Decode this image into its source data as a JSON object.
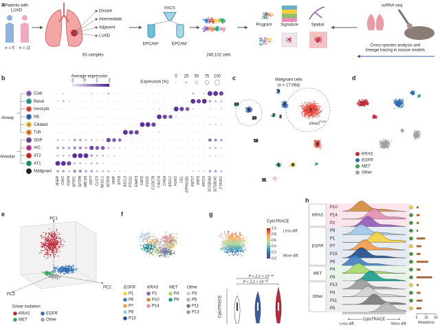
{
  "panel_labels": [
    "a",
    "b",
    "c",
    "d",
    "e",
    "f",
    "g",
    "h"
  ],
  "a": {
    "patients": [
      "Patients with",
      "LUAD"
    ],
    "n": [
      "n = 5",
      "n = 11"
    ],
    "regions": [
      "Distant",
      "Intermediate",
      "Adjacent",
      "LUAD"
    ],
    "samples": "63 samples",
    "facs": "FACS",
    "epcam": [
      "EPCAM⁺",
      "EPCAM⁻"
    ],
    "cells": "246,102 cells",
    "outputs": [
      "Program",
      "Signature",
      "Spatial"
    ],
    "scrna": "scRNA-seq",
    "mouse": [
      "Cross-species analysis and",
      "lineage tracing in mouse models"
    ]
  },
  "b": {
    "avg_title": "Average expression",
    "avg_ticks": [
      -1,
      0,
      1,
      2
    ],
    "pct_title": "Expression (%)",
    "pct_ticks": [
      0,
      25,
      50,
      75,
      100
    ],
    "groups": [
      "Airway",
      "Alveolar"
    ],
    "rows": [
      {
        "id": "3",
        "label": "Club",
        "color": "#8e6bbf"
      },
      {
        "id": "1",
        "label": "Basal",
        "color": "#2aa39a"
      },
      {
        "id": "4",
        "label": "Ionocyte",
        "color": "#e2553a"
      },
      {
        "id": "5",
        "label": "NE",
        "color": "#3c6fc4"
      },
      {
        "id": "2",
        "label": "Ciliated",
        "color": "#e9c13b"
      },
      {
        "id": "6",
        "label": "Tuft",
        "color": "#ef8f32"
      },
      {
        "id": "10",
        "label": "SDP",
        "color": "#7a4fb0"
      },
      {
        "id": "9",
        "label": "AIC",
        "color": "#c2409a"
      },
      {
        "id": "8",
        "label": "AT2",
        "color": "#d8343a"
      },
      {
        "id": "7",
        "label": "AT1",
        "color": "#1f9c74"
      },
      {
        "label": "Malignant",
        "color": "#222222"
      }
    ],
    "genes": [
      "AGER",
      "CAV1",
      "PDPN",
      "SFTPC",
      "SFTPB",
      "ABCA3",
      "KRT7",
      "CLIC5",
      "NKX2-1",
      "SFTPD",
      "HHIP",
      "ETV5",
      "ASCL2",
      "PTGS1",
      "GNAT3",
      "CAPS",
      "FOXJ1",
      "CCDC78",
      "CALCA",
      "CHGA",
      "ASCL1",
      "FOXI1",
      "CEL",
      "ATP6V1B1",
      "KRT17",
      "KRT5",
      "KRT15",
      "SCGB3A2",
      "SCGB1A1",
      "CYP2F1"
    ],
    "pct": [
      [
        10,
        20,
        10,
        10,
        10,
        10,
        20,
        10,
        10,
        30,
        10,
        10,
        10,
        10,
        10,
        10,
        10,
        10,
        10,
        10,
        10,
        10,
        10,
        10,
        30,
        10,
        20,
        90,
        90,
        80
      ],
      [
        20,
        30,
        20,
        10,
        10,
        10,
        10,
        10,
        10,
        10,
        10,
        10,
        10,
        10,
        10,
        10,
        10,
        10,
        10,
        10,
        10,
        10,
        10,
        10,
        90,
        80,
        90,
        40,
        30,
        30
      ],
      [
        10,
        10,
        10,
        10,
        10,
        10,
        10,
        10,
        10,
        10,
        10,
        10,
        10,
        10,
        10,
        10,
        10,
        10,
        20,
        10,
        10,
        90,
        80,
        70,
        20,
        10,
        10,
        20,
        10,
        20
      ],
      [
        10,
        10,
        10,
        10,
        10,
        10,
        10,
        10,
        10,
        10,
        10,
        10,
        10,
        10,
        10,
        10,
        10,
        10,
        90,
        80,
        70,
        20,
        10,
        10,
        10,
        10,
        10,
        10,
        10,
        10
      ],
      [
        10,
        10,
        10,
        10,
        10,
        10,
        10,
        10,
        10,
        10,
        10,
        10,
        10,
        10,
        10,
        90,
        90,
        80,
        10,
        10,
        10,
        10,
        10,
        10,
        10,
        10,
        10,
        20,
        20,
        20
      ],
      [
        10,
        10,
        10,
        10,
        10,
        10,
        10,
        10,
        10,
        10,
        10,
        10,
        90,
        80,
        80,
        10,
        10,
        10,
        20,
        10,
        10,
        10,
        10,
        10,
        10,
        10,
        10,
        10,
        10,
        10
      ],
      [
        30,
        20,
        20,
        40,
        40,
        30,
        30,
        20,
        20,
        80,
        70,
        60,
        10,
        10,
        10,
        10,
        10,
        10,
        10,
        10,
        10,
        10,
        10,
        10,
        10,
        10,
        10,
        60,
        50,
        40
      ],
      [
        40,
        40,
        40,
        50,
        50,
        40,
        80,
        70,
        70,
        30,
        20,
        20,
        10,
        10,
        10,
        10,
        10,
        10,
        10,
        10,
        10,
        10,
        10,
        10,
        10,
        10,
        10,
        30,
        30,
        20
      ],
      [
        30,
        30,
        30,
        90,
        90,
        90,
        40,
        30,
        30,
        20,
        20,
        10,
        10,
        10,
        10,
        10,
        10,
        10,
        10,
        10,
        10,
        10,
        10,
        10,
        10,
        10,
        10,
        20,
        20,
        10
      ],
      [
        90,
        90,
        80,
        30,
        30,
        20,
        30,
        30,
        20,
        10,
        10,
        10,
        10,
        10,
        10,
        10,
        10,
        10,
        10,
        10,
        10,
        10,
        10,
        10,
        10,
        10,
        10,
        10,
        10,
        10
      ],
      [
        40,
        40,
        30,
        50,
        50,
        40,
        40,
        30,
        30,
        30,
        20,
        20,
        10,
        10,
        10,
        10,
        10,
        10,
        10,
        10,
        10,
        10,
        10,
        10,
        20,
        20,
        20,
        40,
        40,
        30
      ]
    ]
  },
  "c": {
    "title": "Malignant cells",
    "n": "(n = 17,064)",
    "clusters": [
      {
        "label": "1",
        "color": "#e8453c"
      },
      {
        "label": "2",
        "color": "#f0a1b0"
      },
      {
        "label": "3",
        "color": "#3a7fd0"
      },
      {
        "label": "4",
        "color": "#2aa36b"
      },
      {
        "label": "5",
        "color": "#3c5fc0"
      },
      {
        "label": "6",
        "color": "#e0b33a"
      },
      {
        "label": "7",
        "color": "#2f9f6a"
      },
      {
        "label": "8",
        "color": "#e24a3b"
      },
      {
        "label": "9",
        "color": "#3d66c9"
      },
      {
        "label": "10",
        "color": "#6a4fb0"
      },
      {
        "label": "11",
        "color": "#c05050"
      },
      {
        "label": "12",
        "color": "#777777"
      },
      {
        "label": "13",
        "color": "#3aa055"
      }
    ],
    "kras": "KRAS",
    "kras_sup": "G12D"
  },
  "d": {
    "legend": [
      {
        "name": "KRAS",
        "color": "#c0283a"
      },
      {
        "name": "EGFR",
        "color": "#2e6bb5"
      },
      {
        "name": "MET",
        "color": "#3aa35a"
      },
      {
        "name": "Other",
        "color": "#a0a0a0"
      }
    ]
  },
  "e": {
    "axes": [
      "PC1",
      "PC2",
      "PC3"
    ],
    "legend_title": "Driver mutation",
    "legend": [
      "KRAS",
      "EGFR",
      "MET",
      "Other"
    ]
  },
  "f": {
    "groups": [
      {
        "name": "EGFR",
        "patients": [
          "P1",
          "P6",
          "P7",
          "P8",
          "P15"
        ]
      },
      {
        "name": "KRAS",
        "patients": [
          "P2",
          "P10",
          "P14"
        ]
      },
      {
        "name": "MET",
        "patients": [
          "P4",
          "P9"
        ]
      },
      {
        "name": "Other",
        "patients": [
          "P3",
          "P5",
          "P11",
          "P13"
        ]
      }
    ],
    "colors": {
      "P1": "#f4d03f",
      "P6": "#3f7fbf",
      "P7": "#f39c4a",
      "P8": "#9ec9e8",
      "P15": "#1f4e8c",
      "P2": "#8e5bb8",
      "P10": "#d08b3a",
      "P14": "#e88fb5",
      "P4": "#a6d96a",
      "P9": "#1a9e8f",
      "P3": "#d0d0d0",
      "P5": "#b5b5b5",
      "P11": "#7a7a7a",
      "P13": "#9a9a9a"
    }
  },
  "g": {
    "colorbar_title": "CytoTRACE",
    "colorbar_ticks": [
      {
        "value": 1,
        "label": "1.0"
      },
      0.8,
      0.6,
      0.4,
      0.2,
      {
        "value": 0,
        "label": "0.0"
      }
    ],
    "less": "Less diff.",
    "more": "More diff.",
    "p": [
      "P < 2.2 × 10⁻¹⁶",
      "P < 2.2 × 10⁻¹⁶"
    ],
    "ylabel": "CytoTRACE"
  },
  "h": {
    "groups": [
      {
        "name": "KRAS",
        "rows": [
          {
            "patient": "P10",
            "peak": 0.3,
            "mutations": 5,
            "status": "#e8d13a"
          },
          {
            "patient": "P14",
            "peak": 0.5,
            "mutations": 8,
            "status": "#3a9a3a"
          },
          {
            "patient": "P2",
            "peak": 0.4,
            "mutations": 6,
            "status": "#3a9a3a"
          }
        ]
      },
      {
        "name": "EGFR",
        "rows": [
          {
            "patient": "P8",
            "peak": 0.3,
            "mutations": 4,
            "status": "#3a9a3a"
          },
          {
            "patient": "P1",
            "peak": 0.55,
            "mutations": 22,
            "status": "#3a9a3a"
          },
          {
            "patient": "P7",
            "peak": 0.35,
            "mutations": 12,
            "status": "#e8d13a"
          },
          {
            "patient": "P15",
            "peak": 0.3,
            "mutations": 10,
            "status": "#3a9a3a"
          },
          {
            "patient": "P6",
            "peak": 0.2,
            "mutations": 30,
            "status": "#3a9a3a"
          }
        ]
      },
      {
        "name": "MET",
        "rows": [
          {
            "patient": "P4",
            "peak": 0.25,
            "mutations": 10,
            "status": "#3a9a3a"
          },
          {
            "patient": "P9",
            "peak": 0.45,
            "mutations": 40,
            "status": "#3a9a3a"
          }
        ]
      },
      {
        "name": "Other",
        "rows": [
          {
            "patient": "P13",
            "peak": 0.3,
            "mutations": 5,
            "status": "#e8d13a"
          },
          {
            "patient": "P3",
            "peak": 0.4,
            "mutations": 10,
            "status": "#3a9a3a"
          },
          {
            "patient": "P11",
            "peak": 0.5,
            "mutations": 15,
            "status": "#3a9a3a"
          },
          {
            "patient": "P5",
            "peak": 0.7,
            "mutations": 12,
            "status": "#e8d13a"
          }
        ]
      }
    ],
    "xlabel": "CytoTRACE",
    "less": "Less diff.",
    "more": "More diff.",
    "bar_title": "Mutations",
    "bar_ticks": [
      0,
      25,
      50
    ]
  }
}
